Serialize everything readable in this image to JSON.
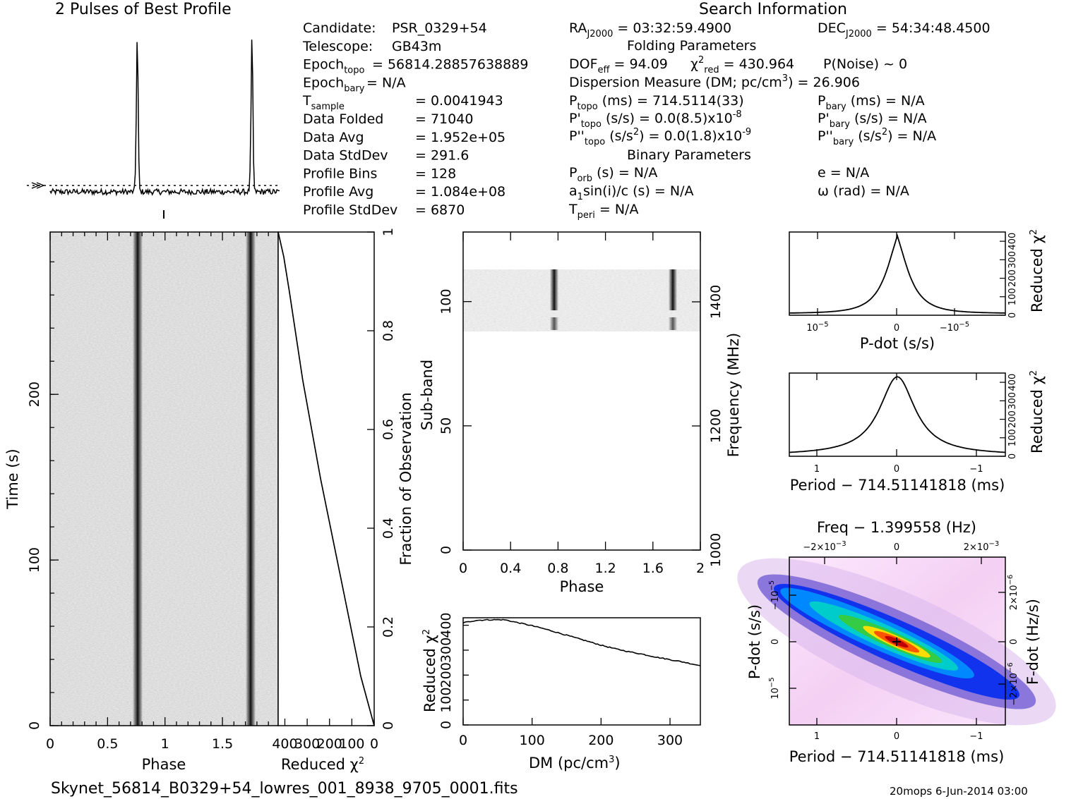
{
  "page": {
    "profile_title": "2 Pulses of Best Profile",
    "search_title": "Search Information",
    "folding_title": "Folding Parameters",
    "binary_title": "Binary Parameters",
    "filename": "Skynet_56814_B0329+54_lowres_001_8938_9705_0001.fits",
    "footer_right": "20mops   6-Jun-2014 03:00"
  },
  "info_left": [
    {
      "label": "Candidate:",
      "value": "PSR_0329+54"
    },
    {
      "label": "Telescope:",
      "value": "GB43m"
    },
    {
      "label": "Epoch",
      "sub": "topo",
      "value": " = 56814.28857638889"
    },
    {
      "label": "Epoch",
      "sub": "bary",
      "value": " = N/A"
    },
    {
      "label": "T",
      "sub": "sample",
      "value": "=   0.0041943"
    },
    {
      "label": "Data Folded",
      "value": "=   71040"
    },
    {
      "label": "Data Avg",
      "value": "=   1.952e+05"
    },
    {
      "label": "Data StdDev",
      "value": "=   291.6"
    },
    {
      "label": "Profile Bins",
      "value": "=   128"
    },
    {
      "label": "Profile Avg",
      "value": "=   1.084e+08"
    },
    {
      "label": "Profile StdDev",
      "value": "=   6870"
    }
  ],
  "info_right": {
    "ra": "RA",
    "ra_sub": "J2000",
    "ra_val": " = 03:32:59.4900",
    "dec": "DEC",
    "dec_sub": "J2000",
    "dec_val": " = 54:34:48.4500",
    "dof": "DOF",
    "dof_sub": "eff",
    "dof_val": " = 94.09",
    "chi": "χ",
    "chi_sup": "2",
    "chi_sub": "red",
    "chi_val": " = 430.964",
    "pnoise": "P(Noise) ~ 0",
    "dm_line": "Dispersion Measure (DM; pc/cm",
    "dm_sup": "3",
    "dm_val": ") = 26.906",
    "ptopo": "P",
    "ptopo_sub": "topo",
    "ptopo_val": " (ms) =  714.5114(33)",
    "pdtopo": "P'",
    "pdtopo_sub": "topo",
    "pdtopo_val": " (s/s) = 0.0(8.5)x10",
    "pdtopo_exp": "-8",
    "pddtopo": "P''",
    "pddtopo_sub": "topo",
    "pddtopo_val1": " (s/s",
    "pddtopo_sup": "2",
    "pddtopo_val2": ") = 0.0(1.8)x10",
    "pddtopo_exp": "-9",
    "pbary": "P",
    "pbary_sub": "bary",
    "pbary_val": " (ms) = N/A",
    "pdbary": "P'",
    "pdbary_sub": "bary",
    "pdbary_val": " (s/s) = N/A",
    "pddbary": "P''",
    "pddbary_sub": "bary",
    "pddbary_val1": " (s/s",
    "pddbary_sup": "2",
    "pddbary_val2": ") = N/A",
    "porb": "P",
    "porb_sub": "orb",
    "porb_val": " (s) = N/A",
    "asini": "a",
    "asini_sub": "1",
    "asini_val": "sin(i)/c (s) = N/A",
    "tperi": "T",
    "tperi_sub": "peri",
    "tperi_val": " = N/A",
    "ecc": "e = N/A",
    "omega": "ω (rad) = N/A"
  },
  "chart_data": [
    {
      "type": "line",
      "title": "2 Pulses of Best Profile",
      "x": "phase 0-2",
      "pulse_phases": [
        0.76,
        1.76
      ],
      "peak_height": 1.0,
      "baseline_level": 0.0
    },
    {
      "type": "heatmap",
      "xlabel": "Phase",
      "ylabel": "Time (s)",
      "xlim": [
        0,
        2
      ],
      "ylim": [
        0,
        298
      ],
      "x_ticks": [
        "0",
        "0.5",
        "1",
        "1.5"
      ],
      "y_ticks": [
        "0",
        "100",
        "200"
      ],
      "pulse_phases": [
        0.76,
        1.76
      ]
    },
    {
      "type": "line",
      "xlabel": "Reduced χ",
      "xlabel_sup": "2",
      "ylabel": "Fraction of Observation",
      "x_ticks": [
        "400",
        "300",
        "200",
        "100",
        "0"
      ],
      "y_ticks": [
        "0",
        "0.2",
        "0.4",
        "0.6",
        "0.8",
        "1"
      ],
      "points": [
        [
          0,
          0
        ],
        [
          60,
          0.1
        ],
        [
          150,
          0.3
        ],
        [
          240,
          0.5
        ],
        [
          320,
          0.7
        ],
        [
          380,
          0.88
        ],
        [
          405,
          0.95
        ],
        [
          430,
          1.0
        ]
      ]
    },
    {
      "type": "heatmap",
      "xlabel": "Phase",
      "ylabel": "Sub-band",
      "y2label": "Frequency (MHz)",
      "xlim": [
        0,
        2
      ],
      "ylim": [
        0,
        128
      ],
      "x_ticks": [
        "0",
        "0.4",
        "0.8",
        "1.2",
        "1.6",
        "2"
      ],
      "y_ticks": [
        "0",
        "50",
        "100"
      ],
      "y2_ticks": [
        "1000",
        "1200",
        "1400"
      ],
      "active_subbands": [
        88,
        113
      ],
      "pulse_phases": [
        0.76,
        1.76
      ]
    },
    {
      "type": "line",
      "xlabel": "DM (pc/cm",
      "xlabel_sup": "3",
      "xlabel_end": ")",
      "ylabel": "Reduced χ",
      "ylabel_sup": "2",
      "x_ticks": [
        "0",
        "100",
        "200",
        "300"
      ],
      "y_ticks": [
        "0",
        "100",
        "200",
        "300",
        "400"
      ],
      "xlim": [
        0,
        344
      ],
      "ylim": [
        0,
        430
      ],
      "x": [
        0,
        20,
        40,
        60,
        80,
        100,
        120,
        140,
        160,
        180,
        200,
        220,
        240,
        260,
        280,
        300,
        320,
        344
      ],
      "y": [
        410,
        420,
        422,
        422,
        410,
        398,
        384,
        368,
        352,
        336,
        320,
        306,
        294,
        284,
        272,
        262,
        252,
        238
      ]
    },
    {
      "type": "line",
      "xlabel": "P-dot (s/s)",
      "ylabel": "Reduced χ",
      "ylabel_sup": "2",
      "x_ticks": [
        "10",
        "0",
        "−10"
      ],
      "x_tick_exp": "−5",
      "y_ticks": [
        "0",
        "100",
        "200",
        "300",
        "400"
      ],
      "shape": "cusp peak at 0",
      "peak": 430,
      "baseline": 8
    },
    {
      "type": "line",
      "xlabel": "Period − 714.51141818 (ms)",
      "ylabel": "Reduced χ",
      "ylabel_sup": "2",
      "x_ticks": [
        "1",
        "0",
        "−1"
      ],
      "y_ticks": [
        "0",
        "100",
        "200",
        "300",
        "400"
      ],
      "shape": "lorentzian peak at 0",
      "peak": 430,
      "baseline": 5
    },
    {
      "type": "heatmap",
      "title": "Freq − 1.399558 (Hz)",
      "xlabel": "Period − 714.51141818 (ms)",
      "ylabel": "P-dot (s/s)",
      "y2label": "F-dot (Hz/s)",
      "x_ticks": [
        "1",
        "0",
        "−1"
      ],
      "x2_ticks": [
        "−2×10",
        "0",
        "2×10"
      ],
      "x2_tick_exp": "−3",
      "y_ticks": [
        "10",
        "0",
        "−10"
      ],
      "y_tick_exp": "−5",
      "y2_ticks": [
        "−2×10",
        "0",
        "2×10"
      ],
      "y2_tick_exp": "−6",
      "peak_marker": "+"
    }
  ]
}
